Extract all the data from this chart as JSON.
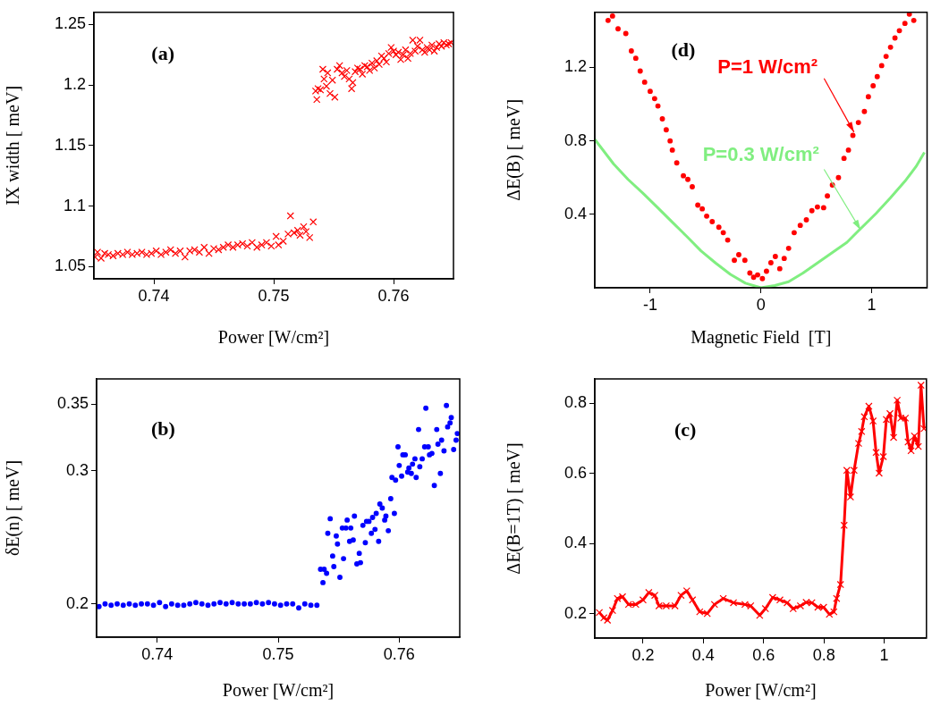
{
  "chart_data": [
    {
      "type": "scatter",
      "annotations": [
        "(a)"
      ],
      "xlabel": "Power [W/cm²]",
      "ylabel": "IX width [ meV]",
      "xlim": [
        0.735,
        0.765
      ],
      "xticks": [
        0.74,
        0.75,
        0.76
      ],
      "ylim": [
        1.04,
        1.26
      ],
      "yticks": [
        1.05,
        1.1,
        1.15,
        1.2,
        1.25
      ],
      "grid": false,
      "marker": "cross",
      "series": [
        {
          "color": "#ff0000",
          "x": [
            0.7351,
            0.7353,
            0.7356,
            0.7359,
            0.7362,
            0.7366,
            0.737,
            0.7374,
            0.7378,
            0.7382,
            0.7386,
            0.739,
            0.7394,
            0.7398,
            0.7402,
            0.7406,
            0.741,
            0.7414,
            0.7418,
            0.7422,
            0.7426,
            0.743,
            0.7434,
            0.7438,
            0.7442,
            0.7446,
            0.745,
            0.7454,
            0.7458,
            0.7462,
            0.7466,
            0.747,
            0.7474,
            0.7478,
            0.7482,
            0.7486,
            0.749,
            0.7494,
            0.7498,
            0.7502,
            0.7504,
            0.7508,
            0.7512,
            0.7514,
            0.7517,
            0.752,
            0.7522,
            0.7525,
            0.7527,
            0.753,
            0.7533,
            0.7535,
            0.7536,
            0.7537,
            0.7539,
            0.7541,
            0.7542,
            0.7544,
            0.7545,
            0.7547,
            0.7549,
            0.7551,
            0.7553,
            0.7555,
            0.7557,
            0.7559,
            0.7561,
            0.7563,
            0.7565,
            0.7566,
            0.7568,
            0.757,
            0.7572,
            0.7574,
            0.7576,
            0.7578,
            0.758,
            0.7582,
            0.7584,
            0.7586,
            0.7588,
            0.759,
            0.7592,
            0.7594,
            0.7596,
            0.7598,
            0.76,
            0.7602,
            0.7604,
            0.7606,
            0.7608,
            0.761,
            0.7612,
            0.7614,
            0.7616,
            0.7618,
            0.762,
            0.7622,
            0.7624,
            0.7626,
            0.7628,
            0.763,
            0.7632,
            0.7634,
            0.7636,
            0.7638,
            0.764,
            0.7642,
            0.7644,
            0.7646,
            0.7648
          ],
          "values": [
            1.058,
            1.062,
            1.057,
            1.061,
            1.06,
            1.059,
            1.061,
            1.06,
            1.062,
            1.06,
            1.061,
            1.062,
            1.06,
            1.061,
            1.063,
            1.06,
            1.062,
            1.064,
            1.061,
            1.063,
            1.058,
            1.063,
            1.064,
            1.062,
            1.066,
            1.061,
            1.065,
            1.064,
            1.066,
            1.068,
            1.066,
            1.068,
            1.069,
            1.067,
            1.07,
            1.066,
            1.068,
            1.07,
            1.067,
            1.075,
            1.068,
            1.071,
            1.077,
            1.092,
            1.078,
            1.08,
            1.076,
            1.083,
            1.079,
            1.074,
            1.087,
            1.195,
            1.188,
            1.197,
            1.196,
            1.213,
            1.205,
            1.199,
            1.21,
            1.193,
            1.204,
            1.19,
            1.213,
            1.216,
            1.21,
            1.207,
            1.212,
            1.205,
            1.197,
            1.202,
            1.211,
            1.214,
            1.213,
            1.209,
            1.216,
            1.215,
            1.212,
            1.218,
            1.214,
            1.22,
            1.217,
            1.224,
            1.222,
            1.219,
            1.226,
            1.231,
            1.228,
            1.225,
            1.227,
            1.221,
            1.225,
            1.229,
            1.222,
            1.226,
            1.237,
            1.228,
            1.232,
            1.237,
            1.229,
            1.227,
            1.231,
            1.229,
            1.233,
            1.228,
            1.231,
            1.234,
            1.232,
            1.235,
            1.233,
            1.234,
            1.235
          ]
        }
      ]
    },
    {
      "type": "scatter",
      "annotations": [
        "(d)"
      ],
      "xlabel": "Magnetic Field  [T]",
      "ylabel": "ΔE(B) [ meV]",
      "xlim": [
        -1.5,
        1.5
      ],
      "xticks": [
        -1,
        0,
        1
      ],
      "ylim": [
        0,
        1.5
      ],
      "yticks": [
        0.4,
        0.8,
        1.2
      ],
      "grid": false,
      "series": [
        {
          "name": "P=1 W/cm²",
          "color": "#ff0000",
          "marker": "circle",
          "x": [
            -1.38,
            -1.34,
            -1.29,
            -1.22,
            -1.17,
            -1.13,
            -1.09,
            -1.05,
            -1.0,
            -0.96,
            -0.93,
            -0.89,
            -0.855,
            -0.82,
            -0.8,
            -0.76,
            -0.7,
            -0.66,
            -0.62,
            -0.57,
            -0.53,
            -0.49,
            -0.44,
            -0.38,
            -0.34,
            -0.3,
            -0.24,
            -0.2,
            -0.145,
            -0.1,
            -0.066,
            -0.03,
            0.013,
            0.05,
            0.09,
            0.13,
            0.17,
            0.21,
            0.25,
            0.3,
            0.355,
            0.41,
            0.46,
            0.51,
            0.566,
            0.6,
            0.645,
            0.7,
            0.75,
            0.79,
            0.83,
            0.88,
            0.934,
            0.97,
            1.013,
            1.05,
            1.09,
            1.13,
            1.17,
            1.21,
            1.25,
            1.3,
            1.34,
            1.38
          ],
          "values": [
            1.456,
            1.48,
            1.41,
            1.385,
            1.29,
            1.25,
            1.18,
            1.12,
            1.07,
            1.03,
            0.99,
            0.92,
            0.86,
            0.8,
            0.75,
            0.68,
            0.61,
            0.59,
            0.55,
            0.45,
            0.43,
            0.39,
            0.36,
            0.33,
            0.3,
            0.26,
            0.15,
            0.18,
            0.15,
            0.08,
            0.057,
            0.07,
            0.05,
            0.09,
            0.136,
            0.17,
            0.104,
            0.16,
            0.215,
            0.3,
            0.34,
            0.37,
            0.42,
            0.44,
            0.436,
            0.5,
            0.56,
            0.6,
            0.705,
            0.75,
            0.83,
            0.9,
            0.96,
            1.04,
            1.1,
            1.15,
            1.21,
            1.26,
            1.31,
            1.36,
            1.4,
            1.44,
            1.49,
            1.456
          ]
        },
        {
          "name": "P=0.3 W/cm²",
          "color": "#80ee80",
          "type": "line",
          "marker": "none",
          "line_style": "solid",
          "x": [
            -1.5,
            -1.33,
            -1.2,
            -1.066,
            -0.93,
            -0.8,
            -0.67,
            -0.54,
            -0.41,
            -0.276,
            -0.14,
            0,
            0.125,
            0.25,
            0.38,
            0.513,
            0.64,
            0.776,
            0.88,
            1.04,
            1.17,
            1.3,
            1.4,
            1.476
          ],
          "values": [
            0.808,
            0.674,
            0.59,
            0.515,
            0.435,
            0.357,
            0.28,
            0.2,
            0.135,
            0.073,
            0.025,
            0.0,
            0.012,
            0.033,
            0.08,
            0.136,
            0.19,
            0.247,
            0.31,
            0.405,
            0.49,
            0.58,
            0.66,
            0.737
          ]
        }
      ]
    },
    {
      "type": "scatter",
      "annotations": [
        "(b)"
      ],
      "xlabel": "Power [W/cm²]",
      "ylabel": "δE(n) [ meV]",
      "xlim": [
        0.735,
        0.765
      ],
      "xticks": [
        0.74,
        0.75,
        0.76
      ],
      "ylim": [
        0.175,
        0.369
      ],
      "yticks": [
        0.2,
        0.3,
        0.35
      ],
      "grid": false,
      "marker": "circle",
      "series": [
        {
          "color": "#0000ff",
          "x": [
            0.7352,
            0.7357,
            0.7362,
            0.7367,
            0.7372,
            0.7377,
            0.7382,
            0.7387,
            0.7392,
            0.7397,
            0.7402,
            0.7407,
            0.7412,
            0.7417,
            0.7422,
            0.7427,
            0.7432,
            0.7437,
            0.7442,
            0.7447,
            0.7452,
            0.7457,
            0.7462,
            0.7467,
            0.7472,
            0.7477,
            0.7482,
            0.7487,
            0.7492,
            0.7497,
            0.7502,
            0.7507,
            0.7512,
            0.7517,
            0.7522,
            0.7527,
            0.7532,
            0.7535,
            0.7537,
            0.7538,
            0.754,
            0.7541,
            0.7543,
            0.7545,
            0.7546,
            0.7548,
            0.7549,
            0.7551,
            0.7553,
            0.7554,
            0.7556,
            0.7557,
            0.7559,
            0.756,
            0.7562,
            0.7563,
            0.7565,
            0.7567,
            0.7568,
            0.757,
            0.7572,
            0.7573,
            0.7575,
            0.7577,
            0.7578,
            0.758,
            0.7581,
            0.7583,
            0.7584,
            0.7586,
            0.7588,
            0.7589,
            0.7591,
            0.7593,
            0.7594,
            0.7596,
            0.7597,
            0.7599,
            0.76,
            0.7602,
            0.7603,
            0.7605,
            0.7607,
            0.7608,
            0.761,
            0.7611,
            0.7613,
            0.7614,
            0.7616,
            0.7617,
            0.7619,
            0.7621,
            0.7622,
            0.7624,
            0.7625,
            0.7627,
            0.7629,
            0.7631,
            0.7632,
            0.7634,
            0.7635,
            0.7637,
            0.7639,
            0.764,
            0.7642,
            0.7643,
            0.7645,
            0.7647,
            0.7648
          ],
          "values": [
            0.198,
            0.2,
            0.199,
            0.2,
            0.199,
            0.2,
            0.199,
            0.2,
            0.2,
            0.199,
            0.201,
            0.198,
            0.2,
            0.199,
            0.199,
            0.2,
            0.201,
            0.2,
            0.199,
            0.2,
            0.201,
            0.2,
            0.201,
            0.2,
            0.2,
            0.2,
            0.201,
            0.2,
            0.201,
            0.2,
            0.199,
            0.2,
            0.2,
            0.197,
            0.2,
            0.199,
            0.199,
            0.226,
            0.216,
            0.226,
            0.223,
            0.253,
            0.264,
            0.236,
            0.228,
            0.251,
            0.245,
            0.22,
            0.257,
            0.234,
            0.257,
            0.263,
            0.247,
            0.257,
            0.248,
            0.266,
            0.23,
            0.238,
            0.231,
            0.259,
            0.246,
            0.262,
            0.262,
            0.253,
            0.265,
            0.256,
            0.268,
            0.247,
            0.275,
            0.272,
            0.263,
            0.266,
            0.255,
            0.279,
            0.295,
            0.268,
            0.293,
            0.318,
            0.304,
            0.296,
            0.312,
            0.312,
            0.299,
            0.302,
            0.298,
            0.305,
            0.309,
            0.295,
            0.331,
            0.303,
            0.309,
            0.318,
            0.347,
            0.318,
            0.312,
            0.313,
            0.289,
            0.331,
            0.32,
            0.298,
            0.323,
            0.315,
            0.349,
            0.333,
            0.336,
            0.34,
            0.316,
            0.323,
            0.328
          ]
        }
      ]
    },
    {
      "type": "line",
      "annotations": [
        "(c)"
      ],
      "xlabel": "Power [W/cm²]",
      "ylabel": "ΔE(B=1T) [ meV]",
      "xlim": [
        0.04,
        1.14
      ],
      "xticks": [
        0.2,
        0.4,
        0.6,
        0.8,
        1
      ],
      "ylim": [
        0.13,
        0.87
      ],
      "yticks": [
        0.2,
        0.4,
        0.6,
        0.8
      ],
      "grid": false,
      "marker": "cross",
      "line_style": "solid",
      "series": [
        {
          "color": "#ff0000",
          "x": [
            0.055,
            0.07,
            0.082,
            0.099,
            0.115,
            0.132,
            0.152,
            0.176,
            0.2,
            0.219,
            0.239,
            0.253,
            0.277,
            0.306,
            0.326,
            0.345,
            0.364,
            0.388,
            0.413,
            0.437,
            0.466,
            0.5,
            0.538,
            0.557,
            0.587,
            0.606,
            0.63,
            0.654,
            0.678,
            0.698,
            0.722,
            0.741,
            0.76,
            0.78,
            0.799,
            0.818,
            0.833,
            0.842,
            0.855,
            0.867,
            0.876,
            0.888,
            0.9,
            0.915,
            0.925,
            0.934,
            0.949,
            0.963,
            0.973,
            0.983,
            0.997,
            1.007,
            1.019,
            1.031,
            1.043,
            1.055,
            1.07,
            1.079,
            1.089,
            1.1,
            1.113,
            1.122,
            1.132
          ],
          "values": [
            0.203,
            0.188,
            0.181,
            0.209,
            0.243,
            0.248,
            0.226,
            0.226,
            0.239,
            0.26,
            0.252,
            0.222,
            0.222,
            0.222,
            0.252,
            0.265,
            0.239,
            0.205,
            0.2,
            0.226,
            0.243,
            0.231,
            0.226,
            0.222,
            0.195,
            0.214,
            0.246,
            0.239,
            0.231,
            0.214,
            0.222,
            0.232,
            0.231,
            0.218,
            0.218,
            0.198,
            0.205,
            0.243,
            0.283,
            0.452,
            0.609,
            0.533,
            0.609,
            0.686,
            0.72,
            0.762,
            0.792,
            0.75,
            0.66,
            0.601,
            0.648,
            0.754,
            0.771,
            0.703,
            0.809,
            0.758,
            0.758,
            0.69,
            0.665,
            0.707,
            0.677,
            0.852,
            0.728
          ]
        }
      ]
    }
  ]
}
